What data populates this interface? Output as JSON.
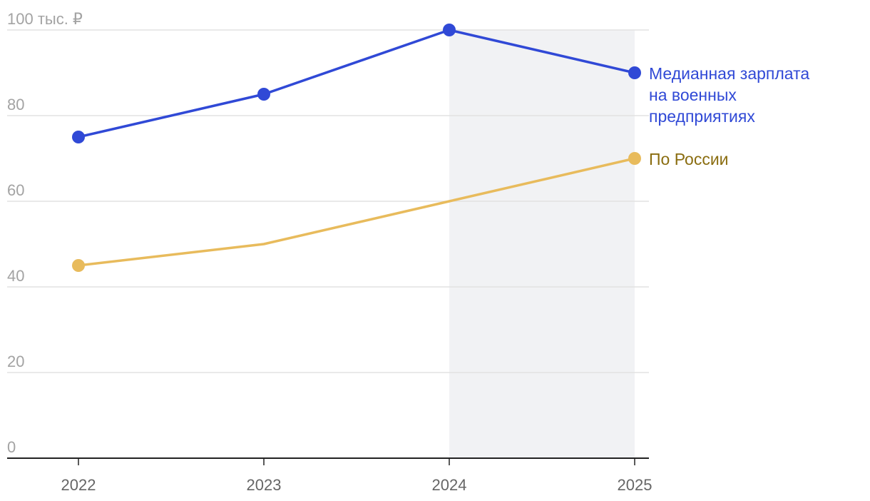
{
  "chart_data": {
    "type": "line",
    "title": "",
    "xlabel": "",
    "ylabel": "",
    "x": [
      "2022",
      "2023",
      "2024",
      "2025"
    ],
    "y_ticks": [
      0,
      20,
      40,
      60,
      80,
      100
    ],
    "y_tick_labels": [
      "0",
      "20",
      "40",
      "60",
      "80",
      "100 тыс. ₽"
    ],
    "ylim": [
      0,
      100
    ],
    "grid": true,
    "shaded_period": [
      "2024",
      "2025"
    ],
    "series": [
      {
        "name": "Медианная зарплата на военных предприятиях",
        "label_lines": [
          "Медианная зарплата",
          "на военных",
          "предприятиях"
        ],
        "color": "#3049d6",
        "values": [
          75,
          85,
          100,
          90
        ],
        "markers": [
          true,
          true,
          true,
          true
        ]
      },
      {
        "name": "По России",
        "label_lines": [
          "По России"
        ],
        "color": "#e8bb5c",
        "label_color": "#8a6d10",
        "values": [
          45,
          50,
          60,
          70
        ],
        "markers": [
          true,
          false,
          false,
          true
        ]
      }
    ]
  }
}
